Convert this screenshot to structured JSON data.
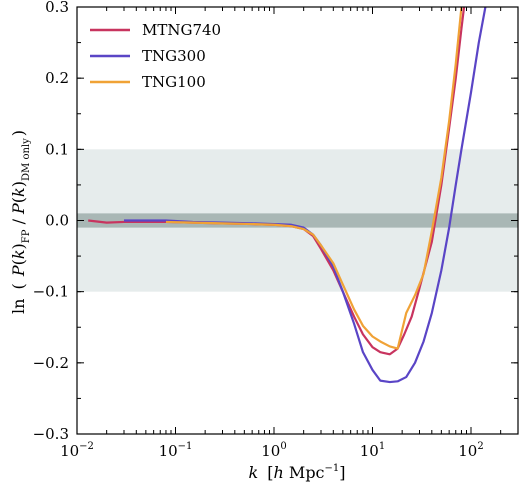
{
  "chart_data": {
    "type": "line",
    "x_scale": "log",
    "xlim": [
      0.01,
      300
    ],
    "ylim": [
      -0.3,
      0.3
    ],
    "x_ticks": [
      {
        "value": 0.01,
        "base": "10",
        "exp": "−2"
      },
      {
        "value": 0.1,
        "base": "10",
        "exp": "−1"
      },
      {
        "value": 1,
        "base": "10",
        "exp": "0"
      },
      {
        "value": 10,
        "base": "10",
        "exp": "1"
      },
      {
        "value": 100,
        "base": "10",
        "exp": "2"
      }
    ],
    "y_ticks": [
      {
        "value": -0.3,
        "label": "−0.3"
      },
      {
        "value": -0.2,
        "label": "−0.2"
      },
      {
        "value": -0.1,
        "label": "−0.1"
      },
      {
        "value": 0.0,
        "label": "0.0"
      },
      {
        "value": 0.1,
        "label": "0.1"
      },
      {
        "value": 0.2,
        "label": "0.2"
      },
      {
        "value": 0.3,
        "label": "0.3"
      }
    ],
    "xlabel": {
      "k": "k",
      "open": "[",
      "h": "h",
      "unit": " Mpc",
      "exp": "−1",
      "close": "]"
    },
    "ylabel": {
      "ln": "ln",
      "text": "( P(k)FP / P(k)DM only )"
    },
    "legend_position": "top-left",
    "bands": [
      {
        "y0": -0.1,
        "y1": 0.1,
        "color": "#e6ecec"
      },
      {
        "y0": -0.01,
        "y1": 0.01,
        "color": "#a9b7b5"
      }
    ],
    "series": [
      {
        "name": "MTNG740",
        "color": "#c8345f",
        "x": [
          0.013,
          0.02,
          0.03,
          0.05,
          0.08,
          0.15,
          0.3,
          0.6,
          1.0,
          1.5,
          2.0,
          2.5,
          3.0,
          4.0,
          5.0,
          6.5,
          8.0,
          10.0,
          12.0,
          15.0,
          18.0,
          21.0,
          25.0,
          30.0,
          40.0,
          50.0,
          60.0,
          70.0,
          80.0,
          100.0
        ],
        "y": [
          0.0,
          -0.003,
          -0.002,
          -0.002,
          -0.002,
          -0.003,
          -0.004,
          -0.005,
          -0.006,
          -0.008,
          -0.012,
          -0.022,
          -0.04,
          -0.07,
          -0.1,
          -0.135,
          -0.16,
          -0.178,
          -0.185,
          -0.188,
          -0.18,
          -0.16,
          -0.135,
          -0.095,
          -0.03,
          0.05,
          0.13,
          0.2,
          0.27,
          0.38
        ]
      },
      {
        "name": "TNG300",
        "color": "#5a45c6",
        "x": [
          0.03,
          0.05,
          0.08,
          0.15,
          0.3,
          0.6,
          1.0,
          1.5,
          2.0,
          2.5,
          3.0,
          4.0,
          5.0,
          6.5,
          8.0,
          10.0,
          12.0,
          15.0,
          18.0,
          22.0,
          27.0,
          33.0,
          40.0,
          50.0,
          60.0,
          70.0,
          80.0,
          100.0,
          120.0,
          140.0
        ],
        "y": [
          0.0,
          0.0,
          0.0,
          -0.002,
          -0.003,
          -0.004,
          -0.005,
          -0.006,
          -0.01,
          -0.02,
          -0.035,
          -0.065,
          -0.1,
          -0.145,
          -0.185,
          -0.21,
          -0.225,
          -0.227,
          -0.226,
          -0.22,
          -0.2,
          -0.17,
          -0.13,
          -0.07,
          -0.01,
          0.05,
          0.1,
          0.18,
          0.25,
          0.3
        ]
      },
      {
        "name": "TNG100",
        "color": "#f0a236",
        "x": [
          0.08,
          0.15,
          0.3,
          0.6,
          1.0,
          1.5,
          2.0,
          2.5,
          3.0,
          4.0,
          5.0,
          6.5,
          8.0,
          10.0,
          12.0,
          15.0,
          18.0,
          22.0,
          27.0,
          33.0,
          40.0,
          50.0,
          60.0,
          70.0,
          80.0
        ],
        "y": [
          -0.002,
          -0.003,
          -0.004,
          -0.005,
          -0.006,
          -0.008,
          -0.012,
          -0.02,
          -0.035,
          -0.06,
          -0.09,
          -0.125,
          -0.148,
          -0.163,
          -0.17,
          -0.177,
          -0.18,
          -0.13,
          -0.105,
          -0.075,
          -0.015,
          0.06,
          0.14,
          0.22,
          0.3
        ]
      }
    ]
  }
}
